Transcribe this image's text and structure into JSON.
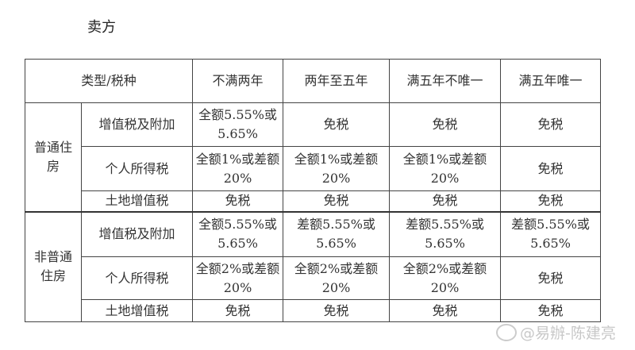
{
  "title": "卖方",
  "table": {
    "header": [
      "类型/税种",
      "不满两年",
      "两年至五年",
      "满五年不唯一",
      "满五年唯一"
    ],
    "groups": [
      {
        "label": "普通住房",
        "rows": [
          {
            "tax": "增值税及附加",
            "cells": [
              "全额5.55%或5.65%",
              "免税",
              "免税",
              "免税"
            ]
          },
          {
            "tax": "个人所得税",
            "cells": [
              "全额1%或差额20%",
              "全额1%或差额20%",
              "全额1%或差额20%",
              "免税"
            ]
          },
          {
            "tax": "土地增值税",
            "cells": [
              "免税",
              "免税",
              "免税",
              "免税"
            ]
          }
        ]
      },
      {
        "label": "非普通住房",
        "rows": [
          {
            "tax": "增值税及附加",
            "cells": [
              "全额5.55%或5.65%",
              "差额5.55%或5.65%",
              "差额5.55%或5.65%",
              "差额5.55%或5.65%"
            ]
          },
          {
            "tax": "个人所得税",
            "cells": [
              "全额2%或差额20%",
              "全额2%或差额20%",
              "全额2%或差额20%",
              "免税"
            ]
          },
          {
            "tax": "土地增值税",
            "cells": [
              "免税",
              "免税",
              "免税",
              "免税"
            ]
          }
        ]
      }
    ]
  },
  "watermark": {
    "text": "@易辦-陈建亮",
    "icon": "weibo-icon"
  }
}
